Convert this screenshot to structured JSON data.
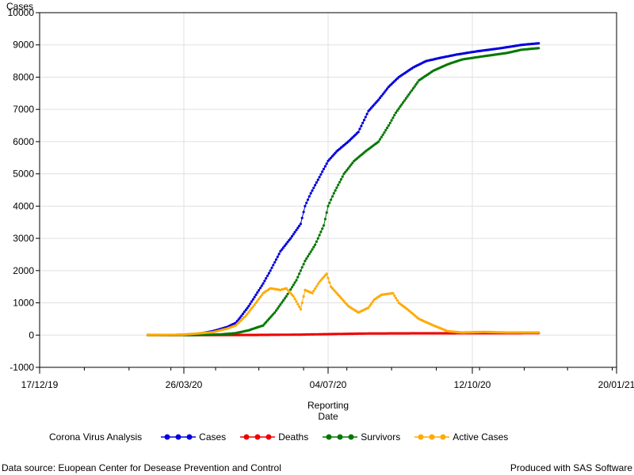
{
  "chart_data": {
    "type": "line",
    "ylabel": "Cases",
    "xlabel_line1": "Reporting",
    "xlabel_line2": "Date",
    "xlim": [
      "2019-12-17",
      "2021-01-20"
    ],
    "ylim": [
      -1000,
      10000
    ],
    "x_ticks": [
      "17/12/19",
      "26/03/20",
      "04/07/20",
      "12/10/20",
      "20/01/21"
    ],
    "y_ticks": [
      -1000,
      0,
      1000,
      2000,
      3000,
      4000,
      5000,
      6000,
      7000,
      8000,
      9000,
      10000
    ],
    "grid": true,
    "legend_title": "Corona Virus Analysis",
    "legend_position": "bottom",
    "series": [
      {
        "name": "Cases",
        "color": "#0000dd",
        "points": [
          [
            "2020-03-01",
            0
          ],
          [
            "2020-03-15",
            0
          ],
          [
            "2020-03-25",
            10
          ],
          [
            "2020-04-05",
            40
          ],
          [
            "2020-04-15",
            120
          ],
          [
            "2020-04-25",
            250
          ],
          [
            "2020-05-01",
            380
          ],
          [
            "2020-05-05",
            600
          ],
          [
            "2020-05-10",
            900
          ],
          [
            "2020-05-15",
            1250
          ],
          [
            "2020-05-20",
            1600
          ],
          [
            "2020-05-25",
            2000
          ],
          [
            "2020-06-01",
            2600
          ],
          [
            "2020-06-08",
            3000
          ],
          [
            "2020-06-15",
            3450
          ],
          [
            "2020-06-18",
            4000
          ],
          [
            "2020-06-22",
            4400
          ],
          [
            "2020-06-28",
            4900
          ],
          [
            "2020-07-04",
            5400
          ],
          [
            "2020-07-10",
            5700
          ],
          [
            "2020-07-18",
            6000
          ],
          [
            "2020-07-25",
            6300
          ],
          [
            "2020-08-01",
            6950
          ],
          [
            "2020-08-08",
            7300
          ],
          [
            "2020-08-15",
            7700
          ],
          [
            "2020-08-22",
            8000
          ],
          [
            "2020-09-01",
            8300
          ],
          [
            "2020-09-10",
            8500
          ],
          [
            "2020-09-20",
            8600
          ],
          [
            "2020-10-01",
            8700
          ],
          [
            "2020-10-15",
            8800
          ],
          [
            "2020-11-01",
            8900
          ],
          [
            "2020-11-15",
            9000
          ],
          [
            "2020-11-27",
            9050
          ]
        ]
      },
      {
        "name": "Deaths",
        "color": "#ee0000",
        "points": [
          [
            "2020-03-01",
            0
          ],
          [
            "2020-04-15",
            0
          ],
          [
            "2020-05-15",
            5
          ],
          [
            "2020-06-15",
            15
          ],
          [
            "2020-07-04",
            30
          ],
          [
            "2020-08-01",
            50
          ],
          [
            "2020-09-01",
            55
          ],
          [
            "2020-10-15",
            58
          ],
          [
            "2020-11-27",
            60
          ]
        ]
      },
      {
        "name": "Survivors",
        "color": "#007700",
        "points": [
          [
            "2020-03-01",
            0
          ],
          [
            "2020-04-01",
            0
          ],
          [
            "2020-04-20",
            20
          ],
          [
            "2020-05-01",
            60
          ],
          [
            "2020-05-10",
            150
          ],
          [
            "2020-05-20",
            300
          ],
          [
            "2020-05-28",
            700
          ],
          [
            "2020-06-05",
            1200
          ],
          [
            "2020-06-12",
            1700
          ],
          [
            "2020-06-18",
            2300
          ],
          [
            "2020-06-25",
            2800
          ],
          [
            "2020-07-01",
            3400
          ],
          [
            "2020-07-04",
            4000
          ],
          [
            "2020-07-08",
            4400
          ],
          [
            "2020-07-15",
            5000
          ],
          [
            "2020-07-22",
            5400
          ],
          [
            "2020-07-30",
            5700
          ],
          [
            "2020-08-08",
            6000
          ],
          [
            "2020-08-15",
            6500
          ],
          [
            "2020-08-20",
            6900
          ],
          [
            "2020-08-28",
            7400
          ],
          [
            "2020-09-05",
            7900
          ],
          [
            "2020-09-15",
            8200
          ],
          [
            "2020-09-25",
            8400
          ],
          [
            "2020-10-05",
            8550
          ],
          [
            "2020-10-20",
            8650
          ],
          [
            "2020-11-05",
            8750
          ],
          [
            "2020-11-15",
            8850
          ],
          [
            "2020-11-27",
            8900
          ]
        ]
      },
      {
        "name": "Active Cases",
        "color": "#ffaa00",
        "points": [
          [
            "2020-03-01",
            0
          ],
          [
            "2020-03-25",
            10
          ],
          [
            "2020-04-15",
            90
          ],
          [
            "2020-04-25",
            200
          ],
          [
            "2020-05-01",
            300
          ],
          [
            "2020-05-08",
            600
          ],
          [
            "2020-05-15",
            1000
          ],
          [
            "2020-05-20",
            1300
          ],
          [
            "2020-05-25",
            1450
          ],
          [
            "2020-06-01",
            1400
          ],
          [
            "2020-06-05",
            1450
          ],
          [
            "2020-06-10",
            1200
          ],
          [
            "2020-06-15",
            800
          ],
          [
            "2020-06-18",
            1400
          ],
          [
            "2020-06-23",
            1300
          ],
          [
            "2020-06-28",
            1650
          ],
          [
            "2020-07-03",
            1900
          ],
          [
            "2020-07-06",
            1500
          ],
          [
            "2020-07-12",
            1200
          ],
          [
            "2020-07-18",
            900
          ],
          [
            "2020-07-25",
            700
          ],
          [
            "2020-08-01",
            850
          ],
          [
            "2020-08-05",
            1100
          ],
          [
            "2020-08-10",
            1250
          ],
          [
            "2020-08-18",
            1300
          ],
          [
            "2020-08-22",
            1000
          ],
          [
            "2020-08-28",
            800
          ],
          [
            "2020-09-05",
            500
          ],
          [
            "2020-09-15",
            300
          ],
          [
            "2020-09-25",
            120
          ],
          [
            "2020-10-05",
            80
          ],
          [
            "2020-10-20",
            100
          ],
          [
            "2020-11-05",
            80
          ],
          [
            "2020-11-27",
            80
          ]
        ]
      }
    ]
  },
  "footer": {
    "source": "Data source: Euopean Center for Desease Prevention and Control",
    "produced": "Produced with SAS Software"
  }
}
